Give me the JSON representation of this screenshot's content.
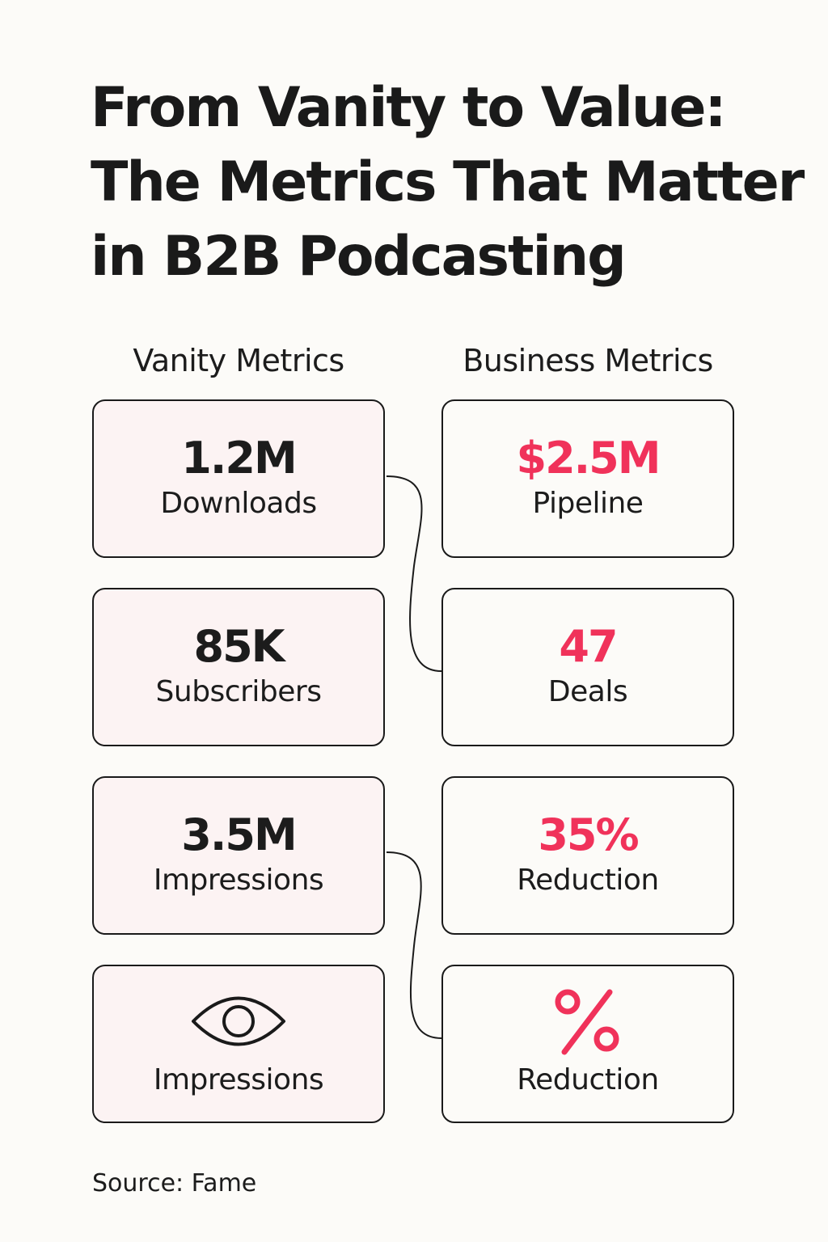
{
  "title": {
    "line1": "From Vanity to Value:",
    "line2": "The Metrics That Matter",
    "line3": "in B2B Podcasting"
  },
  "columns": {
    "vanity_header": "Vanity Metrics",
    "business_header": "Business Metrics"
  },
  "vanity_cards": [
    {
      "value": "1.2M",
      "label": "Downloads"
    },
    {
      "value": "85K",
      "label": "Subscribers"
    },
    {
      "value": "3.5M",
      "label": "Impressions"
    },
    {
      "icon": "eye-icon",
      "label": "Impressions"
    }
  ],
  "business_cards": [
    {
      "value": "$2.5M",
      "label": "Pipeline"
    },
    {
      "value": "47",
      "label": "Deals"
    },
    {
      "value": "35%",
      "label": "Reduction"
    },
    {
      "icon": "percent-icon",
      "label": "Reduction"
    }
  ],
  "connections": [
    {
      "from": "Downloads",
      "to": "Deals"
    },
    {
      "from": "Impressions",
      "to": "Reduction"
    }
  ],
  "colors": {
    "accent": "#f0325a",
    "vanity_card_fill": "#fcf3f3",
    "background": "#fcfbf8",
    "ink": "#1a1a1a"
  },
  "source": "Source: Fame"
}
